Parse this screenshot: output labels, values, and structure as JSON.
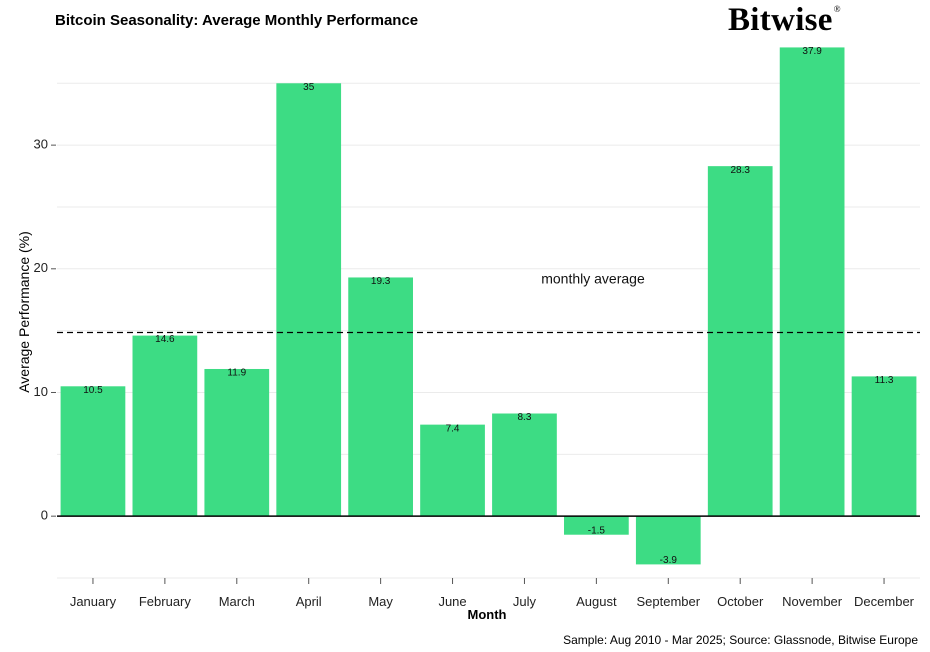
{
  "chart_data": {
    "type": "bar",
    "title": "Bitcoin Seasonality: Average Monthly Performance",
    "xlabel": "Month",
    "ylabel": "Average Performance (%)",
    "categories": [
      "January",
      "February",
      "March",
      "April",
      "May",
      "June",
      "July",
      "August",
      "September",
      "October",
      "November",
      "December"
    ],
    "values": [
      10.5,
      14.6,
      11.9,
      35,
      19.3,
      7.4,
      8.3,
      -1.5,
      -3.9,
      28.3,
      37.9,
      11.3
    ],
    "value_labels": [
      "10.5",
      "14.6",
      "11.9",
      "35",
      "19.3",
      "7.4",
      "8.3",
      "-1.5",
      "-3.9",
      "28.3",
      "37.9",
      "11.3"
    ],
    "y_ticks": [
      0,
      10,
      20,
      30
    ],
    "ylim": [
      -5,
      38.5
    ],
    "reference_line": {
      "value": 14.85,
      "label": "monthly average",
      "style": "dashed"
    },
    "bar_color": "#3ddc84",
    "grid": true
  },
  "brand": {
    "logo_text": "Bitwise",
    "logo_mark": "®"
  },
  "footer": {
    "source": "Sample: Aug 2010 - Mar 2025; Source: Glassnode, Bitwise Europe"
  }
}
